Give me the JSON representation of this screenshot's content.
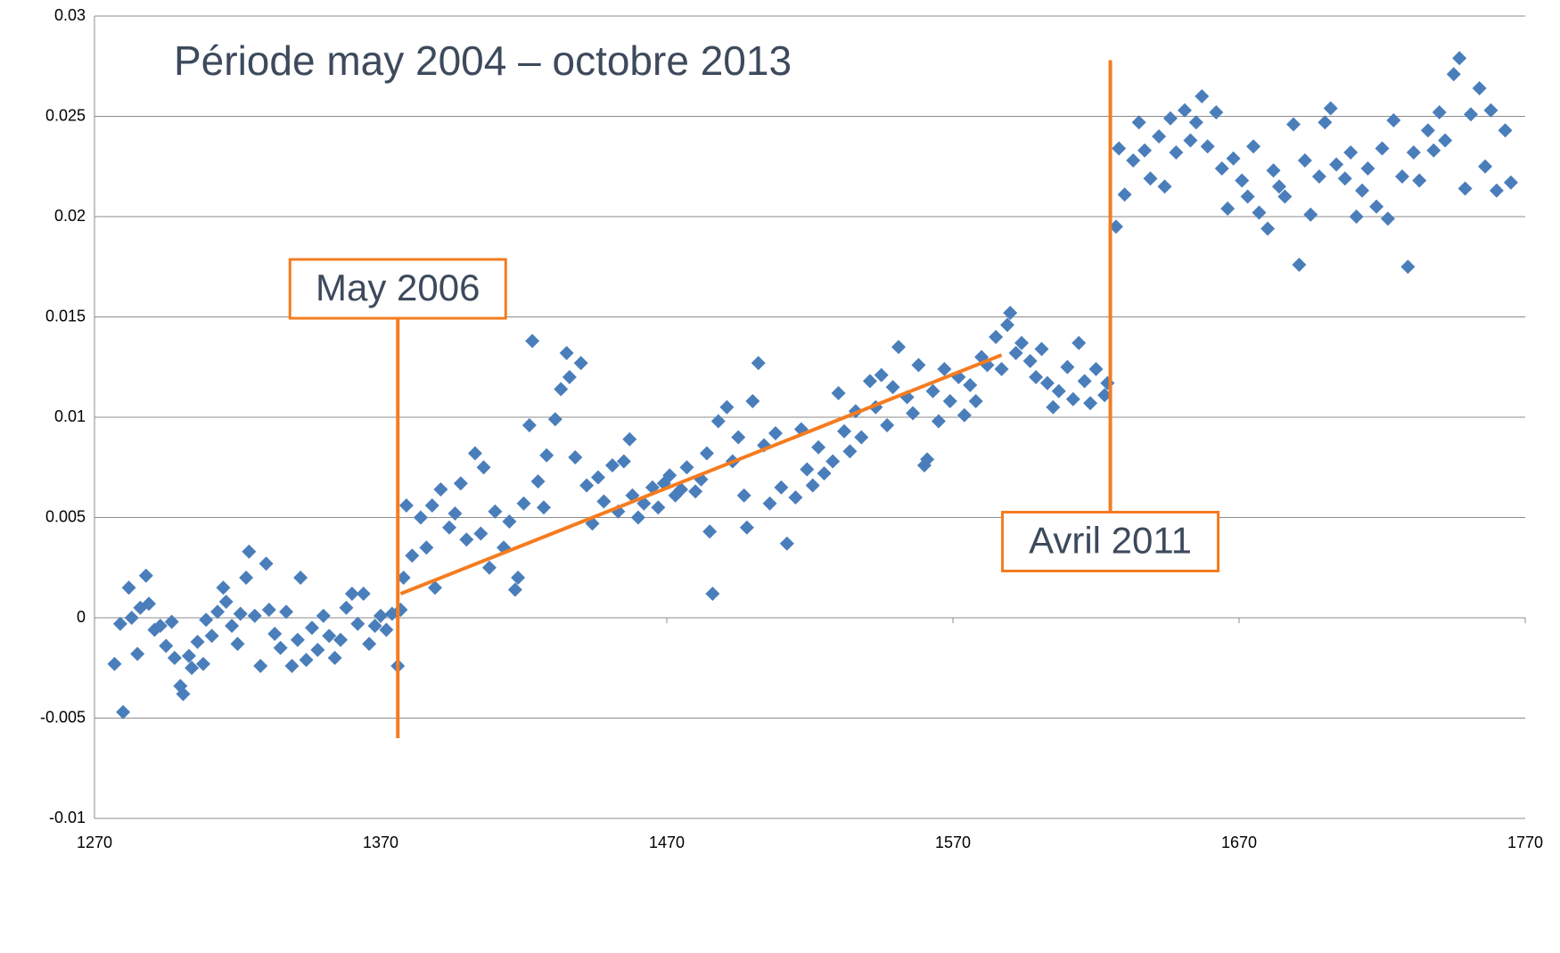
{
  "chart_data": {
    "type": "scatter",
    "title": "Période may 2004 – octobre 2013",
    "color": "#4a7ebb",
    "xlim": [
      1270,
      1770
    ],
    "xticks": [
      1270,
      1370,
      1470,
      1570,
      1670,
      1770
    ],
    "ylim": [
      -0.01,
      0.03
    ],
    "yticks": [
      -0.01,
      -0.005,
      0,
      0.005,
      0.01,
      0.015,
      0.02,
      0.025,
      0.03
    ],
    "grid": true,
    "x": [
      1277,
      1279,
      1280,
      1282,
      1283,
      1285,
      1286,
      1288,
      1289,
      1291,
      1293,
      1295,
      1297,
      1298,
      1300,
      1301,
      1303,
      1304,
      1306,
      1308,
      1309,
      1311,
      1313,
      1315,
      1316,
      1318,
      1320,
      1321,
      1323,
      1324,
      1326,
      1328,
      1330,
      1331,
      1333,
      1335,
      1337,
      1339,
      1341,
      1342,
      1344,
      1346,
      1348,
      1350,
      1352,
      1354,
      1356,
      1358,
      1360,
      1362,
      1364,
      1366,
      1368,
      1370,
      1372,
      1374,
      1376,
      1377,
      1378,
      1379,
      1381,
      1384,
      1386,
      1388,
      1389,
      1391,
      1394,
      1396,
      1398,
      1400,
      1403,
      1405,
      1406,
      1408,
      1410,
      1413,
      1415,
      1417,
      1418,
      1420,
      1422,
      1423,
      1425,
      1427,
      1428,
      1431,
      1433,
      1435,
      1436,
      1438,
      1440,
      1442,
      1444,
      1446,
      1448,
      1451,
      1453,
      1455,
      1457,
      1458,
      1460,
      1462,
      1465,
      1467,
      1469,
      1471,
      1473,
      1475,
      1477,
      1480,
      1482,
      1484,
      1485,
      1486,
      1488,
      1491,
      1493,
      1495,
      1497,
      1498,
      1500,
      1502,
      1504,
      1506,
      1508,
      1510,
      1512,
      1515,
      1517,
      1519,
      1521,
      1523,
      1525,
      1528,
      1530,
      1532,
      1534,
      1536,
      1538,
      1541,
      1543,
      1545,
      1547,
      1549,
      1551,
      1554,
      1556,
      1558,
      1560,
      1561,
      1563,
      1565,
      1567,
      1569,
      1572,
      1574,
      1576,
      1578,
      1580,
      1582,
      1585,
      1587,
      1589,
      1590,
      1592,
      1594,
      1597,
      1599,
      1601,
      1603,
      1605,
      1607,
      1610,
      1612,
      1614,
      1616,
      1618,
      1620,
      1623,
      1624,
      1627,
      1628,
      1630,
      1633,
      1635,
      1637,
      1639,
      1642,
      1644,
      1646,
      1648,
      1651,
      1653,
      1655,
      1657,
      1659,
      1662,
      1664,
      1666,
      1668,
      1671,
      1673,
      1675,
      1677,
      1680,
      1682,
      1684,
      1686,
      1689,
      1691,
      1693,
      1695,
      1698,
      1700,
      1702,
      1704,
      1707,
      1709,
      1711,
      1713,
      1715,
      1718,
      1720,
      1722,
      1724,
      1727,
      1729,
      1731,
      1733,
      1736,
      1738,
      1740,
      1742,
      1745,
      1747,
      1749,
      1751,
      1754,
      1756,
      1758,
      1760,
      1763,
      1765
    ],
    "values": [
      -0.0023,
      -0.0003,
      -0.0047,
      0.0015,
      0.0,
      -0.0018,
      0.0005,
      0.0021,
      0.0007,
      -0.0006,
      -0.0004,
      -0.0014,
      -0.0002,
      -0.002,
      -0.0034,
      -0.0038,
      -0.0019,
      -0.0025,
      -0.0012,
      -0.0023,
      -0.0001,
      -0.0009,
      0.0003,
      0.0015,
      0.0008,
      -0.0004,
      -0.0013,
      0.0002,
      0.002,
      0.0033,
      0.0001,
      -0.0024,
      0.0027,
      0.0004,
      -0.0008,
      -0.0015,
      0.0003,
      -0.0024,
      -0.0011,
      0.002,
      -0.0021,
      -0.0005,
      -0.0016,
      0.0001,
      -0.0009,
      -0.002,
      -0.0011,
      0.0005,
      0.0012,
      -0.0003,
      0.0012,
      -0.0013,
      -0.0004,
      0.0001,
      -0.0006,
      0.0002,
      -0.0024,
      0.0004,
      0.002,
      0.0056,
      0.0031,
      0.005,
      0.0035,
      0.0056,
      0.0015,
      0.0064,
      0.0045,
      0.0052,
      0.0067,
      0.0039,
      0.0082,
      0.0042,
      0.0075,
      0.0025,
      0.0053,
      0.0035,
      0.0048,
      0.0014,
      0.002,
      0.0057,
      0.0096,
      0.0138,
      0.0068,
      0.0055,
      0.0081,
      0.0099,
      0.0114,
      0.0132,
      0.012,
      0.008,
      0.0127,
      0.0066,
      0.0047,
      0.007,
      0.0058,
      0.0076,
      0.0053,
      0.0078,
      0.0089,
      0.0061,
      0.005,
      0.0057,
      0.0065,
      0.0055,
      0.0067,
      0.0071,
      0.0061,
      0.0064,
      0.0075,
      0.0063,
      0.0069,
      0.0082,
      0.0043,
      0.0012,
      0.0098,
      0.0105,
      0.0078,
      0.009,
      0.0061,
      0.0045,
      0.0108,
      0.0127,
      0.0086,
      0.0057,
      0.0092,
      0.0065,
      0.0037,
      0.006,
      0.0094,
      0.0074,
      0.0066,
      0.0085,
      0.0072,
      0.0078,
      0.0112,
      0.0093,
      0.0083,
      0.0103,
      0.009,
      0.0118,
      0.0105,
      0.0121,
      0.0096,
      0.0115,
      0.0135,
      0.011,
      0.0102,
      0.0126,
      0.0076,
      0.0079,
      0.0113,
      0.0098,
      0.0124,
      0.0108,
      0.012,
      0.0101,
      0.0116,
      0.0108,
      0.013,
      0.0126,
      0.014,
      0.0124,
      0.0146,
      0.0152,
      0.0132,
      0.0137,
      0.0128,
      0.012,
      0.0134,
      0.0117,
      0.0105,
      0.0113,
      0.0125,
      0.0109,
      0.0137,
      0.0118,
      0.0107,
      0.0124,
      0.0111,
      0.0117,
      0.0195,
      0.0234,
      0.0211,
      0.0228,
      0.0247,
      0.0233,
      0.0219,
      0.024,
      0.0215,
      0.0249,
      0.0232,
      0.0253,
      0.0238,
      0.0247,
      0.026,
      0.0235,
      0.0252,
      0.0224,
      0.0204,
      0.0229,
      0.0218,
      0.021,
      0.0235,
      0.0202,
      0.0194,
      0.0223,
      0.0215,
      0.021,
      0.0246,
      0.0176,
      0.0228,
      0.0201,
      0.022,
      0.0247,
      0.0254,
      0.0226,
      0.0219,
      0.0232,
      0.02,
      0.0213,
      0.0224,
      0.0205,
      0.0234,
      0.0199,
      0.0248,
      0.022,
      0.0175,
      0.0232,
      0.0218,
      0.0243,
      0.0233,
      0.0252,
      0.0238,
      0.0271,
      0.0279,
      0.0214,
      0.0251,
      0.0264,
      0.0225,
      0.0253,
      0.0213,
      0.0243,
      0.0217
    ],
    "line_color": "#f47c20",
    "lines": [
      {
        "x": [
          1376,
          1376
        ],
        "y": [
          -0.006,
          0.0152
        ]
      },
      {
        "x": [
          1625,
          1625
        ],
        "y": [
          0.0278,
          0.0052
        ]
      },
      {
        "x": [
          1377,
          1587
        ],
        "y": [
          0.0012,
          0.0131
        ]
      }
    ],
    "annotations": [
      {
        "text": "May 2006",
        "x": 1376,
        "y": 0.0164
      },
      {
        "text": "Avril 2011",
        "x": 1625,
        "y": 0.0038
      }
    ]
  }
}
